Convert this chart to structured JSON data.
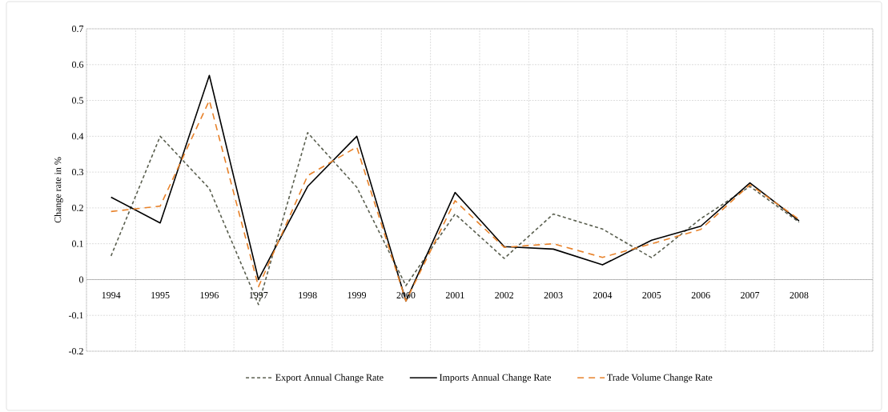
{
  "chart_data": {
    "type": "line",
    "ylabel": "Change rate in %",
    "categories": [
      "1994",
      "1995",
      "1996",
      "1997",
      "1998",
      "1999",
      "2000",
      "2001",
      "2002",
      "2003",
      "2004",
      "2005",
      "2006",
      "2007",
      "2008",
      null
    ],
    "series": [
      {
        "name": "Export Annual Change Rate",
        "color": "#5a5f4f",
        "line_style": "dashed",
        "values": [
          0.066,
          0.4,
          0.254,
          -0.07,
          0.41,
          0.258,
          -0.017,
          0.183,
          0.059,
          0.183,
          0.141,
          0.061,
          0.17,
          0.26,
          0.16,
          null
        ]
      },
      {
        "name": "Imports Annual Change Rate",
        "color": "#000000",
        "line_style": "solid",
        "values": [
          0.23,
          0.158,
          0.57,
          0.0,
          0.26,
          0.4,
          -0.06,
          0.243,
          0.092,
          0.085,
          0.041,
          0.11,
          0.149,
          0.27,
          0.164,
          null
        ]
      },
      {
        "name": "Trade Volume Change Rate",
        "color": "#e8822a",
        "line_style": "dashed",
        "values": [
          0.19,
          0.205,
          0.5,
          -0.02,
          0.29,
          0.37,
          -0.06,
          0.22,
          0.09,
          0.1,
          0.062,
          0.1,
          0.14,
          0.265,
          0.168,
          null
        ]
      }
    ],
    "ylim": [
      -0.2,
      0.7
    ],
    "yticks": [
      -0.2,
      -0.1,
      0,
      0.1,
      0.2,
      0.3,
      0.4,
      0.5,
      0.6,
      0.7
    ],
    "grid": true,
    "legend": "bottom",
    "marker": "none"
  }
}
